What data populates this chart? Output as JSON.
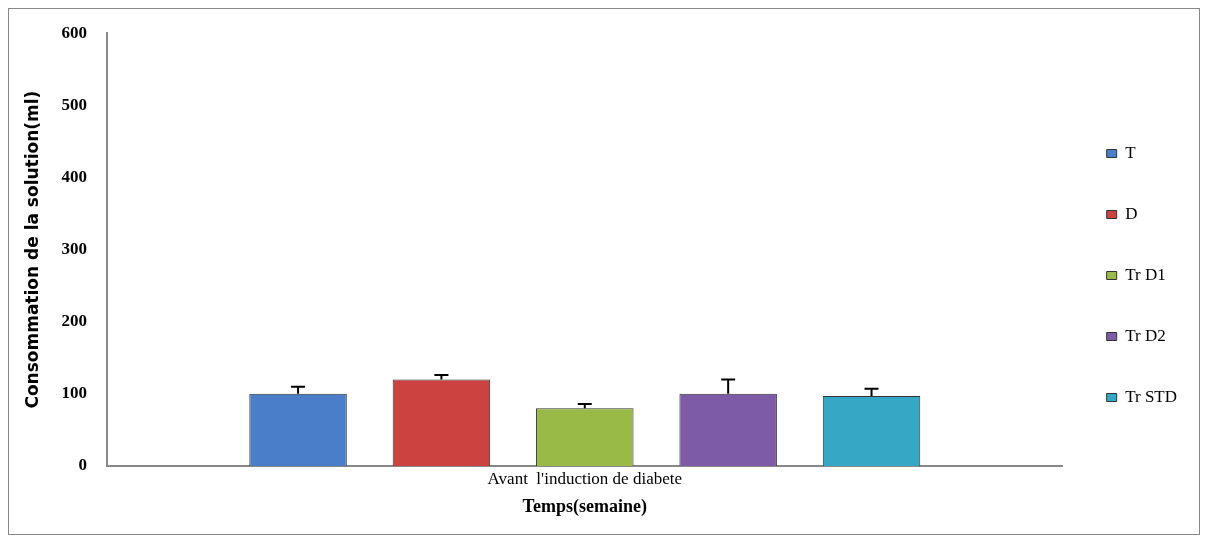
{
  "chart_data": {
    "type": "bar",
    "xlabel": "Temps(semaine)",
    "ylabel": "Consommation de la solution(ml)",
    "categories": [
      "Avant  l'induction de diabete"
    ],
    "series": [
      {
        "name": "T",
        "color": "#4a7ec8",
        "values": [
          100
        ],
        "errors": [
          [
            100,
            110
          ]
        ]
      },
      {
        "name": "D",
        "color": "#cc4240",
        "values": [
          120
        ],
        "errors": [
          [
            120,
            126
          ]
        ]
      },
      {
        "name": "Tr D1",
        "color": "#9aba48",
        "values": [
          80
        ],
        "errors": [
          [
            80,
            86
          ]
        ]
      },
      {
        "name": "Tr D2",
        "color": "#7d5ba6",
        "values": [
          100
        ],
        "errors": [
          [
            100,
            120
          ]
        ]
      },
      {
        "name": "Tr STD",
        "color": "#36a8c6",
        "values": [
          97
        ],
        "errors": [
          [
            97,
            107
          ]
        ]
      }
    ],
    "ylim": [
      0,
      600
    ],
    "yticks": [
      0,
      100,
      200,
      300,
      400,
      500,
      600
    ],
    "grid": false,
    "legend": "right"
  }
}
